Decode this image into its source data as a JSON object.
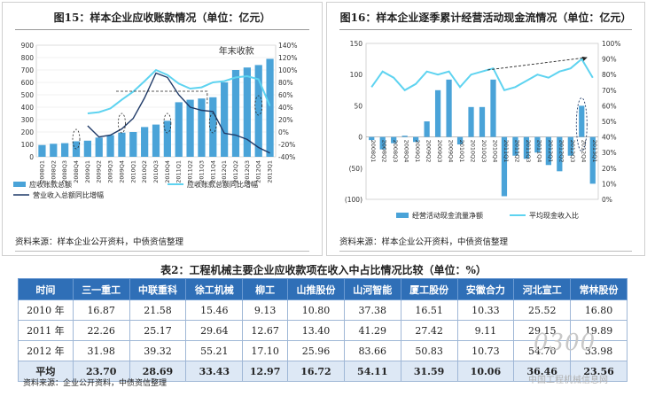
{
  "fig15": {
    "title": "图15：样本企业应收账款情况（单位：亿元）",
    "annotation": "年末收款",
    "source": "资料来源：样本企业公开资料，中债资信整理",
    "legend": [
      "应收账款总额",
      "应收账款总额同比增幅",
      "营业收入总额同比增幅"
    ]
  },
  "fig16": {
    "title": "图16：样本企业逐季累计经营活动现金流情况（单位：亿元）",
    "source": "资料来源：样本企业公开资料，中债资信整理",
    "legend": [
      "经营活动现金流量净额",
      "平均现金收入比"
    ]
  },
  "table": {
    "caption": "表2：工程机械主要企业应收款项在收入中占比情况比较（单位：%）",
    "headers": [
      "时间",
      "三一重工",
      "中联重科",
      "徐工机械",
      "柳工",
      "山推股份",
      "山河智能",
      "厦工股份",
      "安徽合力",
      "河北宣工",
      "常林股份"
    ],
    "rows": [
      [
        "2010 年",
        "16.87",
        "21.58",
        "15.46",
        "9.13",
        "10.80",
        "37.38",
        "16.51",
        "10.33",
        "25.52",
        "16.80"
      ],
      [
        "2011 年",
        "22.26",
        "25.17",
        "29.64",
        "12.67",
        "13.40",
        "41.29",
        "27.42",
        "9.11",
        "29.15",
        "19.89"
      ],
      [
        "2012 年",
        "31.98",
        "39.32",
        "55.21",
        "17.10",
        "25.96",
        "83.66",
        "50.83",
        "10.73",
        "54.70",
        "33.98"
      ],
      [
        "平均",
        "23.70",
        "28.69",
        "33.43",
        "12.97",
        "16.72",
        "54.11",
        "31.59",
        "10.06",
        "36.46",
        "23.56"
      ]
    ],
    "source": "资料来源：企业公开资料，中债资信整理"
  },
  "watermark": {
    "logo": "0300",
    "text": "中国工程机械信息网"
  },
  "chart_data": [
    {
      "type": "bar",
      "title": "图15：样本企业应收账款情况（单位：亿元）",
      "categories": [
        "2008Q1",
        "2008Q2",
        "2008Q3",
        "2008Q4",
        "2009Q1",
        "2009Q2",
        "2009Q3",
        "2009Q4",
        "2010Q1",
        "2010Q2",
        "2010Q3",
        "2010Q4",
        "2011Q1",
        "2011Q2",
        "2011Q3",
        "2011Q4",
        "2012Q1",
        "2012Q2",
        "2012Q3",
        "2012Q4",
        "2013Q1"
      ],
      "y_ticks": [
        0,
        100,
        200,
        300,
        400,
        500,
        600,
        700,
        800,
        900
      ],
      "y2_ticks": [
        "-40%",
        "-20%",
        "0%",
        "20%",
        "40%",
        "60%",
        "80%",
        "100%",
        "120%",
        "140%"
      ],
      "ylim": [
        0,
        900
      ],
      "y2lim": [
        -40,
        140
      ],
      "series": [
        {
          "name": "应收账款总额",
          "axis": "left",
          "values": [
            95,
            105,
            110,
            125,
            130,
            155,
            175,
            195,
            200,
            240,
            260,
            290,
            440,
            460,
            470,
            480,
            600,
            700,
            720,
            740,
            790
          ]
        },
        {
          "name": "应收账款总额同比增幅",
          "axis": "right",
          "values": [
            null,
            null,
            null,
            null,
            30,
            32,
            38,
            52,
            65,
            82,
            100,
            92,
            78,
            70,
            72,
            80,
            82,
            88,
            90,
            85,
            42
          ]
        },
        {
          "name": "营业收入总额同比增幅",
          "axis": "right",
          "values": [
            null,
            null,
            null,
            null,
            10,
            -8,
            -5,
            5,
            22,
            55,
            95,
            88,
            60,
            40,
            35,
            33,
            -2,
            -5,
            -12,
            -25,
            -34
          ]
        }
      ]
    },
    {
      "type": "bar",
      "title": "图16：样本企业逐季累计经营活动现金流情况（单位：亿元）",
      "categories": [
        "2008Q1",
        "2008Q2",
        "2008Q3",
        "2008Q4",
        "2009Q1",
        "2009Q2",
        "2009Q3",
        "2009Q4",
        "2010Q1",
        "2010Q2",
        "2010Q3",
        "2010Q4",
        "2011Q1",
        "2011Q2",
        "2011Q3",
        "2011Q4",
        "2012Q1",
        "2012Q2",
        "2012Q3",
        "2012Q4",
        "2013Q1"
      ],
      "y_ticks": [
        "(100)",
        "(50)",
        "0",
        "50",
        "100",
        "150"
      ],
      "y2_ticks": [
        "0%",
        "10%",
        "20%",
        "30%",
        "40%",
        "50%",
        "60%",
        "70%",
        "80%",
        "90%",
        "100%"
      ],
      "ylim": [
        -100,
        150
      ],
      "y2lim": [
        0,
        100
      ],
      "series": [
        {
          "name": "经营活动现金流量净额",
          "axis": "left",
          "values": [
            -5,
            -20,
            -10,
            2,
            -8,
            25,
            75,
            92,
            -12,
            48,
            48,
            92,
            -95,
            -30,
            -35,
            -25,
            -45,
            -55,
            -30,
            50,
            -75
          ]
        },
        {
          "name": "平均现金收入比",
          "axis": "right",
          "values": [
            72,
            82,
            78,
            70,
            74,
            82,
            80,
            82,
            72,
            80,
            82,
            84,
            70,
            72,
            76,
            80,
            78,
            82,
            84,
            90,
            78
          ]
        }
      ]
    }
  ]
}
